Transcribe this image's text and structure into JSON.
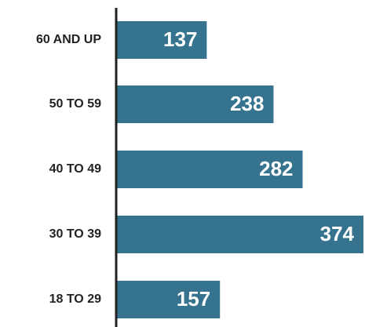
{
  "colors": {
    "bar": "#36738f",
    "axis": "#222222",
    "label_text": "#222222",
    "value_text": "#ffffff",
    "background": "#ffffff"
  },
  "chart_data": {
    "type": "bar",
    "orientation": "horizontal",
    "categories": [
      "60 AND UP",
      "50 TO 59",
      "40 TO 49",
      "30 TO 39",
      "18 TO 29"
    ],
    "values": [
      137,
      238,
      282,
      374,
      157
    ],
    "data_labels": [
      "137",
      "238",
      "282",
      "374",
      "157"
    ],
    "xlim": [
      0,
      374
    ],
    "title": "",
    "xlabel": "",
    "ylabel": "",
    "grid": false,
    "legend": "none"
  }
}
